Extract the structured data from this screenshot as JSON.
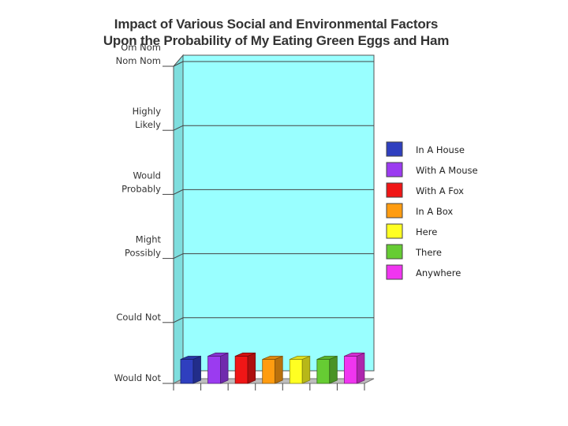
{
  "chart_data": {
    "type": "bar",
    "title_lines": [
      "Impact of Various Social and Environmental Factors",
      "Upon the Probability of My Eating Green Eggs and Ham"
    ],
    "categories": [
      "In A House",
      "With A Mouse",
      "With A Fox",
      "In A Box",
      "Here",
      "There",
      "Anywhere"
    ],
    "y_levels": [
      [
        "Would Not"
      ],
      [
        "Could Not"
      ],
      [
        "Might",
        "Possibly"
      ],
      [
        "Would",
        "Probably"
      ],
      [
        "Highly",
        "Likely"
      ],
      [
        "Om Nom",
        "Nom Nom"
      ]
    ],
    "ylim": [
      0,
      5
    ],
    "values": [
      0.4,
      0.45,
      0.45,
      0.4,
      0.4,
      0.4,
      0.45
    ],
    "colors": [
      "#2f3fbf",
      "#9b3bf0",
      "#f01616",
      "#ff9c10",
      "#ffff22",
      "#66cc33",
      "#f035f0"
    ],
    "legend_position": "right",
    "background_color": "#99ffff",
    "grid": true
  }
}
